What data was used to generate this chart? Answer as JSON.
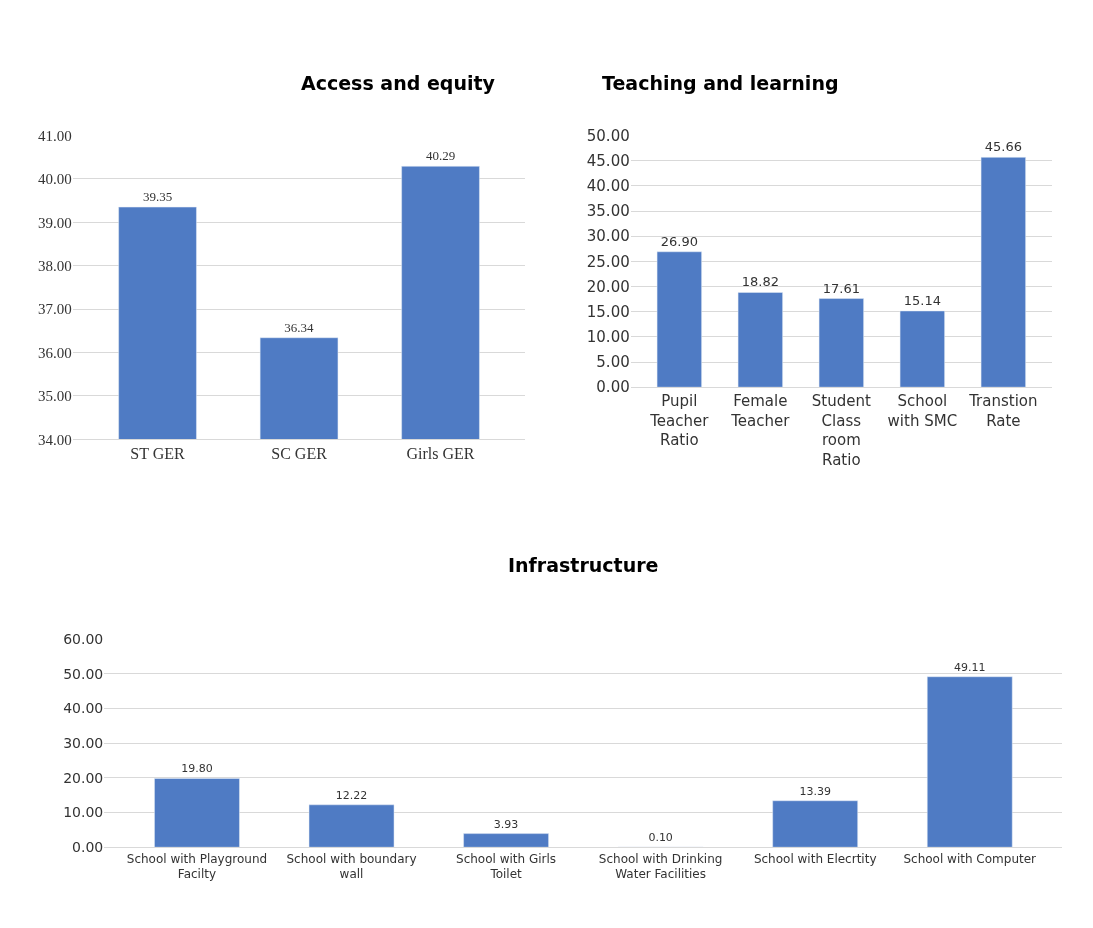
{
  "chart_data": [
    {
      "type": "bar",
      "title": "Access and equity",
      "categories": [
        "ST GER",
        "SC GER",
        "Girls GER"
      ],
      "values": [
        39.35,
        36.34,
        40.29
      ],
      "value_labels": [
        "39.35",
        "36.34",
        "40.29"
      ],
      "color": "#4f7bc4",
      "ylim": [
        34,
        41
      ],
      "yticks": [
        {
          "value": 34,
          "label": "34.00"
        },
        {
          "value": 35,
          "label": "35.00"
        },
        {
          "value": 36,
          "label": "36.00"
        },
        {
          "value": 37,
          "label": "37.00"
        },
        {
          "value": 38,
          "label": "38.00"
        },
        {
          "value": 39,
          "label": "39.00"
        },
        {
          "value": 40,
          "label": "40.00"
        },
        {
          "value": 41,
          "label": "41.00"
        }
      ],
      "grid": "y"
    },
    {
      "type": "bar",
      "title": "Teaching and learning",
      "categories": [
        "Pupil Teacher Ratio",
        "Female Teacher",
        "Student Class room Ratio",
        "School with SMC",
        "Transtion Rate"
      ],
      "values": [
        26.9,
        18.82,
        17.61,
        15.14,
        45.66
      ],
      "value_labels": [
        "26.90",
        "18.82",
        "17.61",
        "15.14",
        "45.66"
      ],
      "color": "#4f7bc4",
      "ylim": [
        0,
        50
      ],
      "yticks": [
        {
          "value": 0,
          "label": "0.00"
        },
        {
          "value": 5,
          "label": "5.00"
        },
        {
          "value": 10,
          "label": "10.00"
        },
        {
          "value": 15,
          "label": "15.00"
        },
        {
          "value": 20,
          "label": "20.00"
        },
        {
          "value": 25,
          "label": "25.00"
        },
        {
          "value": 30,
          "label": "30.00"
        },
        {
          "value": 35,
          "label": "35.00"
        },
        {
          "value": 40,
          "label": "40.00"
        },
        {
          "value": 45,
          "label": "45.00"
        },
        {
          "value": 50,
          "label": "50.00"
        }
      ],
      "grid": "y"
    },
    {
      "type": "bar",
      "title": "Infrastructure",
      "categories": [
        "School with Playground Facilty",
        "School with boundary wall",
        "School with Girls Toilet",
        "School with Drinking Water Facilities",
        "School with Elecrtity",
        "School with Computer"
      ],
      "values": [
        19.8,
        12.22,
        3.93,
        0.1,
        13.39,
        49.11
      ],
      "value_labels": [
        "19.80",
        "12.22",
        "3.93",
        "0.10",
        "13.39",
        "49.11"
      ],
      "color": "#4f7bc4",
      "ylim": [
        0,
        60
      ],
      "yticks": [
        {
          "value": 0,
          "label": "0.00"
        },
        {
          "value": 10,
          "label": "10.00"
        },
        {
          "value": 20,
          "label": "20.00"
        },
        {
          "value": 30,
          "label": "30.00"
        },
        {
          "value": 40,
          "label": "40.00"
        },
        {
          "value": 50,
          "label": "50.00"
        },
        {
          "value": 60,
          "label": "60.00"
        }
      ],
      "grid": "y"
    }
  ]
}
